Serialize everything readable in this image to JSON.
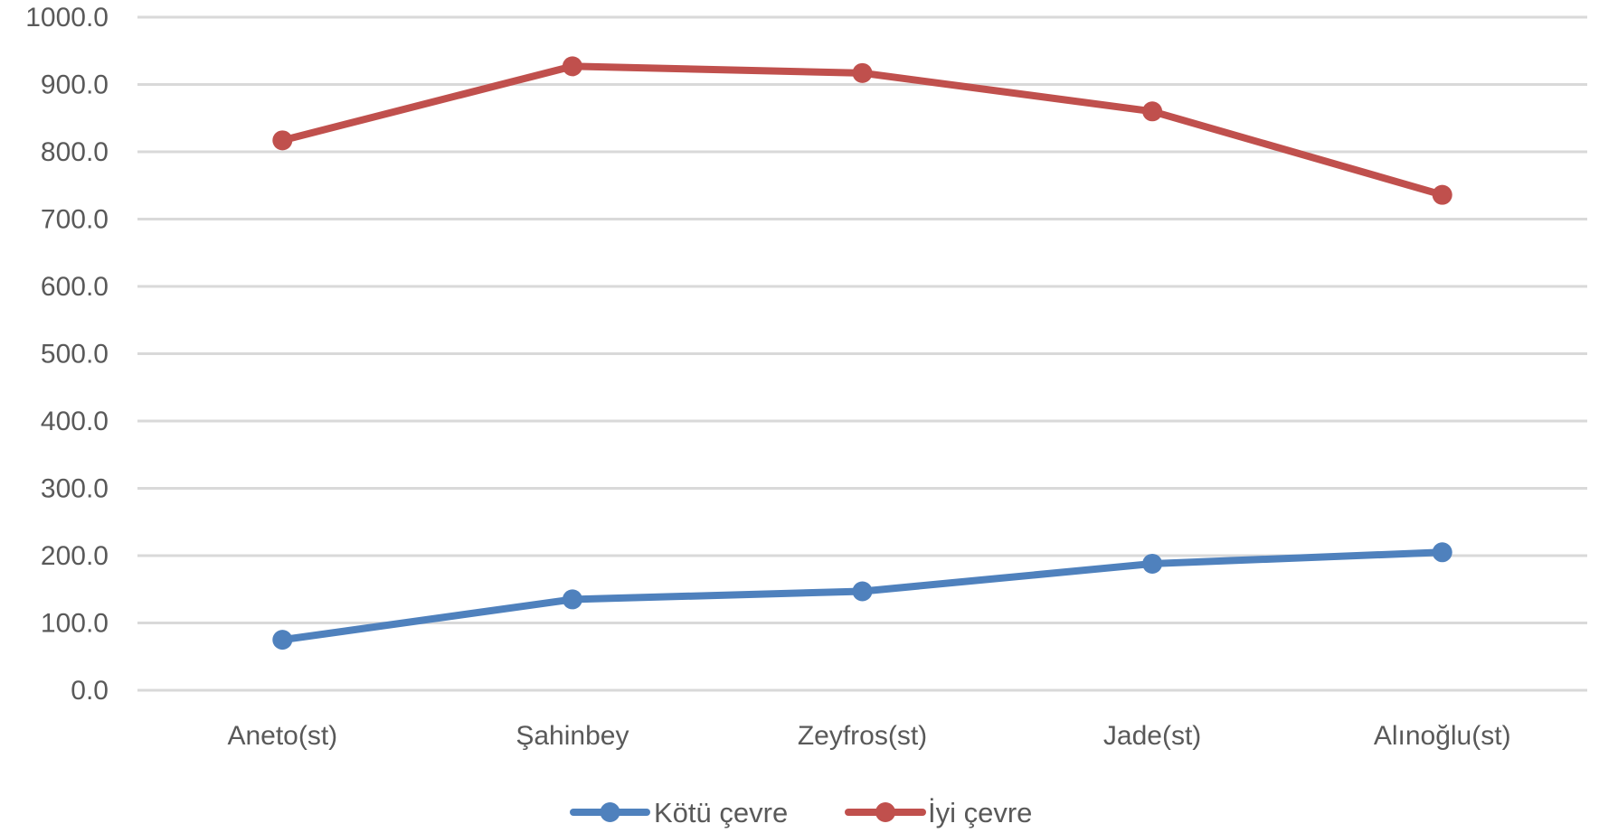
{
  "chart_data": {
    "type": "line",
    "categories": [
      "Aneto(st)",
      "Şahinbey",
      "Zeyfros(st)",
      "Jade(st)",
      "Alınoğlu(st)"
    ],
    "series": [
      {
        "name": "Kötü çevre",
        "color": "#4f81bd",
        "values": [
          75,
          135,
          147,
          188,
          205
        ]
      },
      {
        "name": "İyi çevre",
        "color": "#c0504d",
        "values": [
          817,
          927,
          917,
          860,
          736
        ]
      }
    ],
    "ylim": [
      0,
      1000
    ],
    "yticks": [
      "0.0",
      "100.0",
      "200.0",
      "300.0",
      "400.0",
      "500.0",
      "600.0",
      "700.0",
      "800.0",
      "900.0",
      "1000.0"
    ],
    "title": "",
    "xlabel": "",
    "ylabel": "",
    "grid": true,
    "legend_position": "bottom"
  }
}
